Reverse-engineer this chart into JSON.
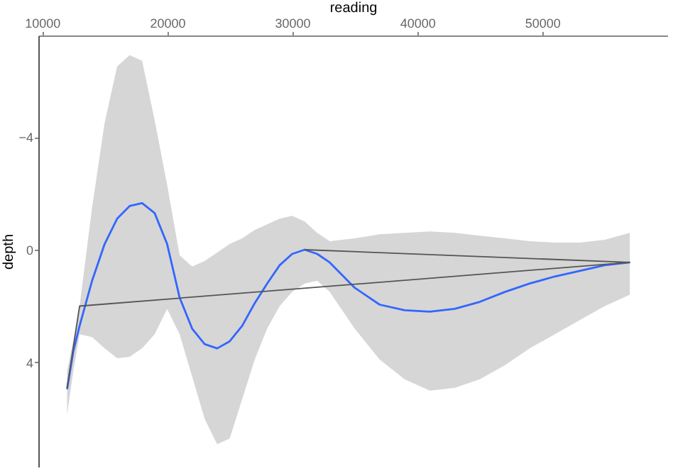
{
  "chart_data": {
    "type": "line",
    "xlabel": "reading",
    "ylabel": "depth",
    "xlim": [
      9700,
      60000
    ],
    "xticks": [
      10000,
      20000,
      30000,
      40000,
      50000
    ],
    "ylim": [
      7.7,
      -7.6
    ],
    "yticks": [
      -4,
      0,
      4
    ],
    "grid": false,
    "series": [
      {
        "color": "#3366ff",
        "x": [
          12000,
          12500,
          13000,
          14000,
          15000,
          16000,
          17000,
          18000,
          19000,
          20000,
          21000,
          22000,
          23000,
          24000,
          25000,
          26000,
          27000,
          28000,
          29000,
          30000,
          31000,
          32000,
          33000,
          35000,
          37000,
          39000,
          41000,
          43000,
          45000,
          47000,
          49000,
          51000,
          53000,
          55000,
          57000
        ],
        "values": [
          4.95,
          3.6,
          2.7,
          1.1,
          -0.2,
          -1.1,
          -1.55,
          -1.65,
          -1.3,
          -0.2,
          1.7,
          2.8,
          3.35,
          3.5,
          3.25,
          2.7,
          1.9,
          1.2,
          0.55,
          0.15,
          0.0,
          0.15,
          0.45,
          1.35,
          1.95,
          2.15,
          2.2,
          2.1,
          1.85,
          1.5,
          1.2,
          0.95,
          0.75,
          0.55,
          0.45
        ],
        "lower": [
          4.3,
          3.2,
          2.0,
          -1.5,
          -4.5,
          -6.5,
          -6.9,
          -6.7,
          -4.6,
          -2.3,
          0.2,
          0.6,
          0.4,
          0.1,
          -0.2,
          -0.4,
          -0.7,
          -0.9,
          -1.1,
          -1.2,
          -1.0,
          -0.6,
          -0.3,
          -0.4,
          -0.55,
          -0.6,
          -0.65,
          -0.6,
          -0.5,
          -0.4,
          -0.3,
          -0.25,
          -0.25,
          -0.35,
          -0.6
        ],
        "upper": [
          5.85,
          4.3,
          3.0,
          3.1,
          3.5,
          3.85,
          3.8,
          3.5,
          3.0,
          2.1,
          3.0,
          4.5,
          6.0,
          6.9,
          6.7,
          5.3,
          3.9,
          2.8,
          2.0,
          1.5,
          1.2,
          1.1,
          1.5,
          2.8,
          3.9,
          4.6,
          5.0,
          4.9,
          4.6,
          4.1,
          3.5,
          3.0,
          2.5,
          2.0,
          1.6
        ]
      },
      {
        "color": "#555555",
        "x": [
          12000,
          13000,
          57000,
          31000
        ],
        "values": [
          4.9,
          2.0,
          0.45,
          0.0
        ]
      }
    ]
  }
}
